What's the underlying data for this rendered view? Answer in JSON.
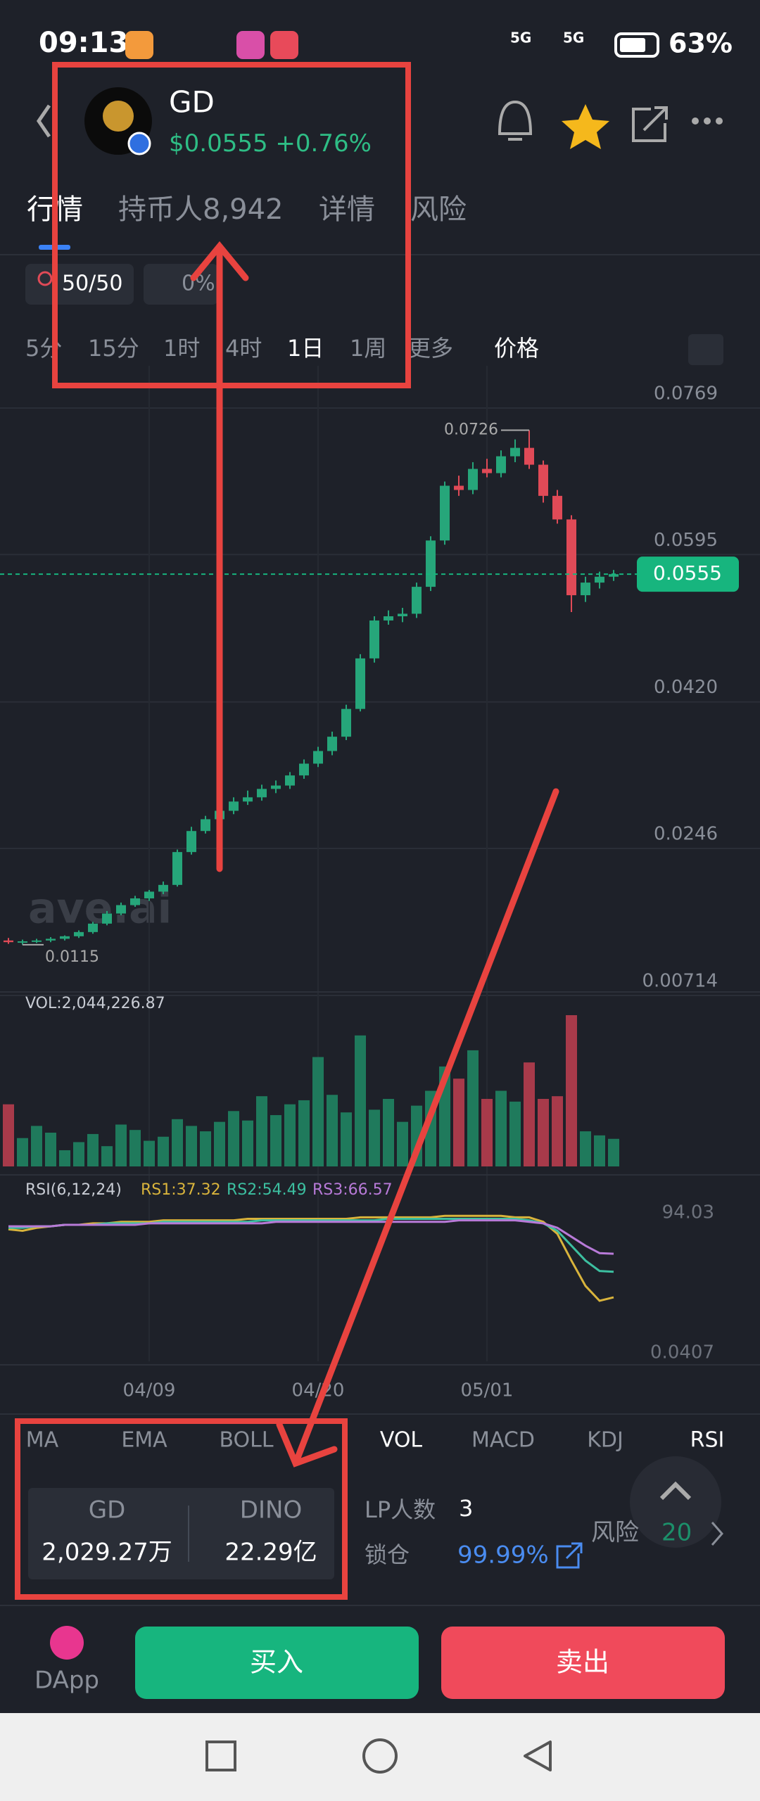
{
  "status_bar": {
    "time": "09:13",
    "network": [
      "5G",
      "5G"
    ],
    "battery": "63%"
  },
  "header": {
    "symbol": "GD",
    "price": "$0.0555",
    "change": "+0.76%"
  },
  "tabs": [
    "行情",
    "持币人8,942",
    "详情",
    "风险"
  ],
  "badges": [
    "50/50",
    "0%"
  ],
  "intervals": [
    "5分",
    "15分",
    "1时",
    "4时",
    "1日",
    "1周",
    "更多",
    "价格"
  ],
  "watermark": "ave.ai",
  "chart_data": {
    "type": "candlestick",
    "categories": [
      null,
      null,
      null,
      null,
      null,
      null,
      null,
      null,
      null,
      null,
      "04/09",
      null,
      null,
      null,
      null,
      null,
      null,
      null,
      null,
      null,
      null,
      null,
      "04/20",
      null,
      null,
      null,
      null,
      null,
      null,
      null,
      null,
      null,
      null,
      null,
      "05/01",
      null,
      null,
      null,
      null,
      null,
      null,
      null,
      null,
      null
    ],
    "open": [
      0.012,
      0.0118,
      0.0119,
      0.012,
      0.0122,
      0.0125,
      0.013,
      0.014,
      0.0152,
      0.0162,
      0.017,
      0.0178,
      0.0186,
      0.0225,
      0.025,
      0.0264,
      0.0274,
      0.0285,
      0.029,
      0.03,
      0.0304,
      0.0316,
      0.033,
      0.0345,
      0.0362,
      0.0395,
      0.0455,
      0.05,
      0.0505,
      0.0508,
      0.054,
      0.0595,
      0.066,
      0.0655,
      0.068,
      0.0675,
      0.0695,
      0.0705,
      0.0685,
      0.0648,
      0.062,
      0.053,
      0.0545,
      0.0552
    ],
    "high": [
      0.0123,
      0.0121,
      0.0122,
      0.0124,
      0.0126,
      0.0132,
      0.0142,
      0.0155,
      0.0165,
      0.0173,
      0.018,
      0.019,
      0.0228,
      0.0255,
      0.0268,
      0.0278,
      0.029,
      0.0298,
      0.0305,
      0.031,
      0.032,
      0.0335,
      0.035,
      0.0368,
      0.04,
      0.046,
      0.0505,
      0.0512,
      0.0515,
      0.0545,
      0.06,
      0.0665,
      0.0672,
      0.0688,
      0.0692,
      0.0702,
      0.0715,
      0.0726,
      0.069,
      0.0655,
      0.0625,
      0.0552,
      0.0558,
      0.056
    ],
    "low": [
      0.0116,
      0.0115,
      0.0117,
      0.0118,
      0.012,
      0.0123,
      0.0128,
      0.0138,
      0.015,
      0.016,
      0.0167,
      0.0175,
      0.0184,
      0.0222,
      0.0247,
      0.026,
      0.027,
      0.0281,
      0.0286,
      0.0295,
      0.03,
      0.0312,
      0.0326,
      0.034,
      0.0358,
      0.0392,
      0.045,
      0.0495,
      0.0498,
      0.0503,
      0.0535,
      0.059,
      0.0648,
      0.065,
      0.067,
      0.067,
      0.0688,
      0.068,
      0.064,
      0.0615,
      0.051,
      0.0522,
      0.0538,
      0.0547
    ],
    "close": [
      0.0118,
      0.0119,
      0.012,
      0.0122,
      0.0125,
      0.013,
      0.014,
      0.0152,
      0.0162,
      0.017,
      0.0178,
      0.0186,
      0.0225,
      0.025,
      0.0264,
      0.0274,
      0.0285,
      0.029,
      0.03,
      0.0304,
      0.0316,
      0.033,
      0.0345,
      0.0362,
      0.0395,
      0.0455,
      0.05,
      0.0505,
      0.0508,
      0.054,
      0.0595,
      0.066,
      0.0655,
      0.068,
      0.0675,
      0.0695,
      0.0705,
      0.0685,
      0.0648,
      0.062,
      0.053,
      0.0545,
      0.0552,
      0.0555
    ],
    "up_color": "#26a67a",
    "down_color": "#e04a57",
    "ylim": [
      0.00714,
      0.0769
    ],
    "yticks": [
      0.0769,
      0.0595,
      {
        "value": 0.042,
        "label": "0.0420"
      },
      0.0246,
      0.00714
    ],
    "volume": {
      "label": "VOL:2,044,226.87",
      "values": [
        4600000,
        2100000,
        3000000,
        2500000,
        1200000,
        1800000,
        2400000,
        1500000,
        3100000,
        2700000,
        1900000,
        2200000,
        3500000,
        3000000,
        2600000,
        3300000,
        4100000,
        3400000,
        5200000,
        3800000,
        4600000,
        4900000,
        8100000,
        5300000,
        4000000,
        9700000,
        4200000,
        5000000,
        3300000,
        4500000,
        5600000,
        7400000,
        6500000,
        8600000,
        5000000,
        5600000,
        4800000,
        7700000,
        5000000,
        5200000,
        11200000,
        2600000,
        2300000,
        2044226.87
      ]
    },
    "rsi": {
      "label": "RSI(6,12,24)",
      "ylim": [
        0.0407,
        94.03
      ],
      "yticks": [
        94.03,
        0.0407
      ],
      "series": [
        {
          "name": "RS1:37.32",
          "color": "#d9b43c",
          "values": [
            83,
            82,
            84,
            85,
            86,
            86,
            87,
            87,
            88,
            88,
            88,
            89,
            89,
            89,
            89,
            89,
            89,
            90,
            90,
            90,
            90,
            90,
            90,
            90,
            90,
            91,
            91,
            91,
            91,
            91,
            91,
            92,
            92,
            92,
            92,
            92,
            91,
            91,
            88,
            80,
            62,
            45,
            35,
            37.32
          ]
        },
        {
          "name": "RS2:54.49",
          "color": "#3cbfa0",
          "values": [
            84,
            84,
            85,
            85,
            86,
            86,
            86,
            87,
            87,
            87,
            87,
            88,
            88,
            88,
            88,
            88,
            88,
            88,
            89,
            89,
            89,
            89,
            89,
            89,
            89,
            89,
            89,
            90,
            90,
            90,
            90,
            90,
            90,
            90,
            90,
            90,
            90,
            89,
            87,
            82,
            72,
            62,
            55,
            54.49
          ]
        },
        {
          "name": "RS3:66.57",
          "color": "#b87ad8",
          "values": [
            85,
            85,
            85,
            85,
            86,
            86,
            86,
            86,
            86,
            86,
            87,
            87,
            87,
            87,
            87,
            87,
            87,
            87,
            87,
            88,
            88,
            88,
            88,
            88,
            88,
            88,
            88,
            88,
            88,
            88,
            88,
            88,
            89,
            89,
            89,
            89,
            89,
            88,
            87,
            84,
            78,
            72,
            67,
            66.57
          ]
        }
      ]
    }
  },
  "indicator_tabs": [
    "MA",
    "EMA",
    "BOLL",
    "VOL",
    "MACD",
    "KDJ",
    "RSI"
  ],
  "pair": {
    "base": "GD",
    "base_amount": "2,029.27万",
    "quote": "DINO",
    "quote_amount": "22.29亿"
  },
  "lp": {
    "label": "LP人数",
    "value": "3",
    "lock_label": "锁仓",
    "lock_value": "99.99%"
  },
  "risk": {
    "label": "风险",
    "value": "20"
  },
  "actions": {
    "dapp": "DApp",
    "buy": "买入",
    "sell": "卖出"
  }
}
